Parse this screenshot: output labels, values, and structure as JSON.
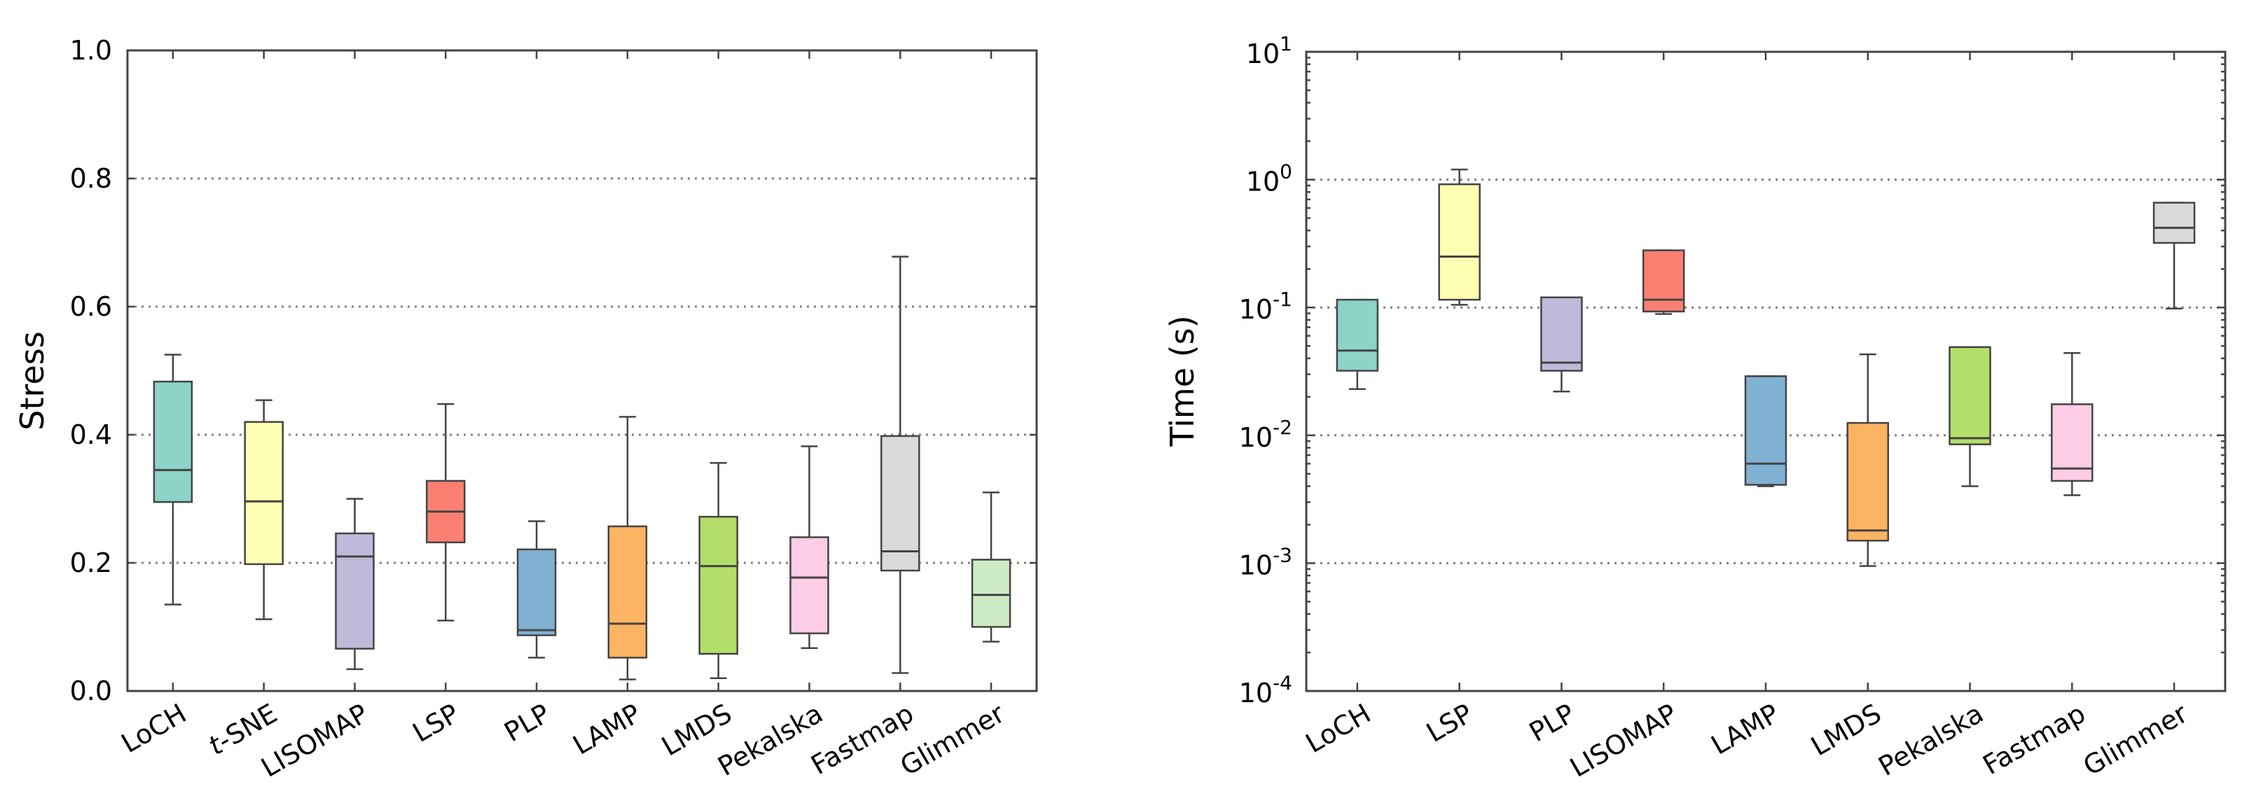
{
  "chart_data": [
    {
      "type": "boxplot",
      "ylabel": "Stress",
      "yscale": "linear",
      "ylim": [
        0,
        1
      ],
      "yticks": [
        "0.0",
        "0.2",
        "0.4",
        "0.6",
        "0.8",
        "1.0"
      ],
      "grid_values": [
        0.2,
        0.4,
        0.6,
        0.8
      ],
      "series": [
        {
          "name": "LoCH",
          "color": "#8dd3c7",
          "min": 0.135,
          "q1": 0.295,
          "median": 0.345,
          "q3": 0.483,
          "max": 0.525
        },
        {
          "name": "t-SNE",
          "color": "#ffffb3",
          "min": 0.112,
          "q1": 0.198,
          "median": 0.296,
          "q3": 0.42,
          "max": 0.454
        },
        {
          "name": "LISOMAP",
          "color": "#bebada",
          "min": 0.034,
          "q1": 0.066,
          "median": 0.21,
          "q3": 0.246,
          "max": 0.3
        },
        {
          "name": "LSP",
          "color": "#fb8072",
          "min": 0.11,
          "q1": 0.232,
          "median": 0.28,
          "q3": 0.328,
          "max": 0.448
        },
        {
          "name": "PLP",
          "color": "#80b1d3",
          "min": 0.052,
          "q1": 0.087,
          "median": 0.095,
          "q3": 0.221,
          "max": 0.265
        },
        {
          "name": "LAMP",
          "color": "#fdb462",
          "min": 0.018,
          "q1": 0.052,
          "median": 0.105,
          "q3": 0.257,
          "max": 0.428
        },
        {
          "name": "LMDS",
          "color": "#b3de69",
          "min": 0.02,
          "q1": 0.058,
          "median": 0.195,
          "q3": 0.272,
          "max": 0.356
        },
        {
          "name": "Pekalska",
          "color": "#fccde5",
          "min": 0.067,
          "q1": 0.09,
          "median": 0.177,
          "q3": 0.24,
          "max": 0.382
        },
        {
          "name": "Fastmap",
          "color": "#d9d9d9",
          "min": 0.028,
          "q1": 0.188,
          "median": 0.218,
          "q3": 0.398,
          "max": 0.678
        },
        {
          "name": "Glimmer",
          "color": "#ccebc5",
          "min": 0.077,
          "q1": 0.1,
          "median": 0.15,
          "q3": 0.205,
          "max": 0.31
        }
      ]
    },
    {
      "type": "boxplot",
      "ylabel": "Time (s)",
      "yscale": "log",
      "ylim_exp": [
        -4,
        1
      ],
      "ytick_exponents": [
        "-4",
        "-3",
        "-2",
        "-1",
        "0",
        "1"
      ],
      "grid_exponents": [
        -3,
        -2,
        -1,
        0
      ],
      "series": [
        {
          "name": "LoCH",
          "color": "#8dd3c7",
          "min": 0.023,
          "q1": 0.032,
          "median": 0.046,
          "q3": 0.115,
          "max": 0.115
        },
        {
          "name": "LSP",
          "color": "#ffffb3",
          "min": 0.105,
          "q1": 0.115,
          "median": 0.25,
          "q3": 0.92,
          "max": 1.2
        },
        {
          "name": "PLP",
          "color": "#bebada",
          "min": 0.022,
          "q1": 0.032,
          "median": 0.037,
          "q3": 0.12,
          "max": 0.12
        },
        {
          "name": "LISOMAP",
          "color": "#fb8072",
          "min": 0.089,
          "q1": 0.093,
          "median": 0.115,
          "q3": 0.28,
          "max": 0.28
        },
        {
          "name": "LAMP",
          "color": "#80b1d3",
          "min": 0.004,
          "q1": 0.0041,
          "median": 0.006,
          "q3": 0.029,
          "max": 0.029
        },
        {
          "name": "LMDS",
          "color": "#fdb462",
          "min": 0.00095,
          "q1": 0.0015,
          "median": 0.0018,
          "q3": 0.0125,
          "max": 0.043
        },
        {
          "name": "Pekalska",
          "color": "#b3de69",
          "min": 0.004,
          "q1": 0.0085,
          "median": 0.0095,
          "q3": 0.049,
          "max": 0.049
        },
        {
          "name": "Fastmap",
          "color": "#fccde5",
          "min": 0.0034,
          "q1": 0.0044,
          "median": 0.0055,
          "q3": 0.0175,
          "max": 0.044
        },
        {
          "name": "Glimmer",
          "color": "#d9d9d9",
          "min": 0.098,
          "q1": 0.32,
          "median": 0.42,
          "q3": 0.66,
          "max": 0.66
        }
      ]
    }
  ]
}
